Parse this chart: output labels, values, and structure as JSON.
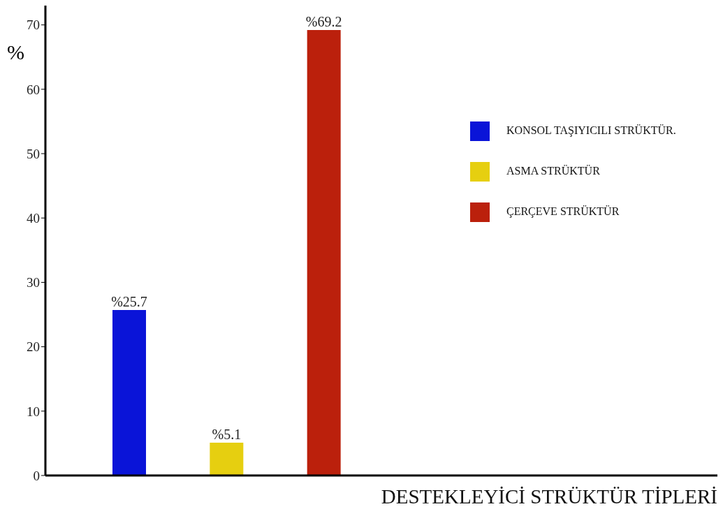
{
  "chart_data": {
    "type": "bar",
    "xlabel": "DESTEKLEYİCİ STRÜKTÜR TİPLERİ",
    "ylabel": "%",
    "categories": [
      null,
      null,
      null
    ],
    "stacked": true,
    "series": [
      {
        "name": "KONSOL TAŞIYICILI STRÜKTÜR.",
        "color": "#0a14d8",
        "values": [
          25.7,
          null,
          null
        ],
        "value_labels": [
          "%25.7",
          null,
          null
        ]
      },
      {
        "name": "ASMA STRÜKTÜR",
        "color": "#e6cf10",
        "values": [
          null,
          5.1,
          null
        ],
        "value_labels": [
          null,
          "%5.1",
          null
        ]
      },
      {
        "name": "ÇERÇEVE STRÜKTÜR",
        "color": "#bb200c",
        "values": [
          null,
          null,
          69.2
        ],
        "value_labels": [
          null,
          null,
          "%69.2"
        ]
      }
    ],
    "ylim": [
      0,
      73
    ],
    "yticks": [
      0,
      10,
      20,
      30,
      40,
      50,
      60,
      70
    ],
    "tick_labels": "y",
    "legend": "top right",
    "grid": false
  }
}
